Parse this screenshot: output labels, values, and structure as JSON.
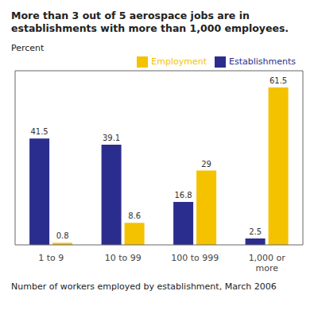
{
  "chart_data": {
    "type": "bar",
    "title": "More than 3 out of 5 aerospace jobs are in\nestablishments with more than 1,000 employees.",
    "ylabel": "Percent",
    "xlabel": "Number of workers employed by establishment, March 2006",
    "categories": [
      "1 to 9",
      "10 to 99",
      "100 to 999",
      "1,000 or\nmore"
    ],
    "series": [
      {
        "name": "Establishments",
        "color": "#2b2d8e",
        "values": [
          41.5,
          39.1,
          16.8,
          2.5
        ]
      },
      {
        "name": "Employment",
        "color": "#f5c200",
        "values": [
          0.8,
          8.6,
          29.0,
          61.5
        ]
      }
    ],
    "ylim": [
      0,
      68
    ],
    "grid": false,
    "legend": "upper right",
    "data_labels": true,
    "tick_labels": "x"
  }
}
